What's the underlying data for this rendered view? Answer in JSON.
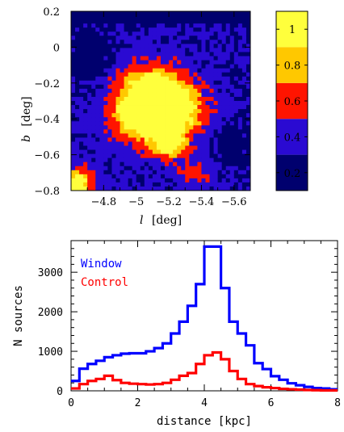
{
  "chart_data": [
    {
      "type": "heatmap",
      "description_hint": "",
      "xlabel_var": "l",
      "xlabel_unit": "[deg]",
      "ylabel_var": "b",
      "ylabel_unit": "[deg]",
      "xlim": [
        -4.6,
        -5.7
      ],
      "ylim": [
        -0.8,
        0.2
      ],
      "x_ticks": [
        -4.8,
        -5,
        -5.2,
        -5.4,
        -5.6
      ],
      "x_tick_labels": [
        "−4.8",
        "−5",
        "−5.2",
        "−5.4",
        "−5.6"
      ],
      "y_ticks": [
        0.2,
        0,
        -0.2,
        -0.4,
        -0.6,
        -0.8
      ],
      "y_tick_labels": [
        "0.2",
        "0",
        "−0.2",
        "−0.4",
        "−0.6",
        "−0.8"
      ],
      "colorbar": {
        "levels": [
          0.2,
          0.4,
          0.6,
          0.8,
          1
        ],
        "level_labels": [
          "0.2",
          "0.4",
          "0.6",
          "0.8",
          "1"
        ],
        "colors": [
          "#00006e",
          "#2a0ad2",
          "#ff1400",
          "#ffc800",
          "#ffff3c"
        ]
      }
    },
    {
      "type": "line",
      "style": "step",
      "xlabel": "distance [kpc]",
      "ylabel": "N sources",
      "xlim": [
        0,
        8
      ],
      "ylim": [
        0,
        3800
      ],
      "x_ticks": [
        0,
        2,
        4,
        6,
        8
      ],
      "y_ticks": [
        0,
        1000,
        2000,
        3000
      ],
      "bin_edges": [
        0,
        0.25,
        0.5,
        0.75,
        1.0,
        1.25,
        1.5,
        1.75,
        2.0,
        2.25,
        2.5,
        2.75,
        3.0,
        3.25,
        3.5,
        3.75,
        4.0,
        4.25,
        4.5,
        4.75,
        5.0,
        5.25,
        5.5,
        5.75,
        6.0,
        6.25,
        6.5,
        6.75,
        7.0,
        7.25,
        7.5,
        7.75,
        8.0
      ],
      "series": [
        {
          "name": "Window",
          "color": "#0000ff",
          "values": [
            250,
            560,
            680,
            760,
            850,
            900,
            940,
            950,
            950,
            1000,
            1080,
            1200,
            1450,
            1750,
            2150,
            2700,
            3650,
            3650,
            2600,
            1750,
            1450,
            1150,
            700,
            550,
            370,
            280,
            190,
            140,
            100,
            70,
            60,
            40
          ]
        },
        {
          "name": "Control",
          "color": "#ff0000",
          "values": [
            60,
            170,
            250,
            300,
            380,
            270,
            200,
            180,
            170,
            160,
            170,
            200,
            280,
            380,
            450,
            680,
            900,
            970,
            800,
            500,
            300,
            170,
            120,
            90,
            70,
            50,
            40,
            30,
            20,
            15,
            10,
            10
          ]
        }
      ]
    }
  ]
}
